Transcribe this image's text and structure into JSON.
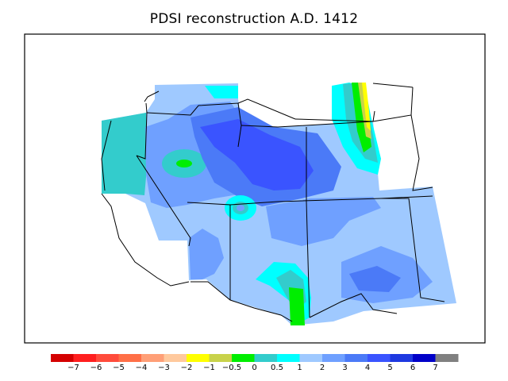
{
  "title": "PDSI reconstruction A.D. 1412",
  "legend": {
    "colors": [
      "#d40000",
      "#ff1f1f",
      "#ff4b3b",
      "#ff6f47",
      "#ff9f77",
      "#ffc99d",
      "#ffff00",
      "#c8d24a",
      "#00ee00",
      "#33cccc",
      "#00ffff",
      "#9fc9ff",
      "#6fa0ff",
      "#4b7af7",
      "#3a54ff",
      "#1e39e0",
      "#0000c8",
      "#808080"
    ],
    "ticks": [
      "−7",
      "−6",
      "−5",
      "−4",
      "−3",
      "−2",
      "−1",
      "−0.5",
      "0",
      "0.5",
      "1",
      "2",
      "3",
      "4",
      "5",
      "6",
      "7"
    ]
  },
  "regions": [
    "wa-teal-region",
    "id-blue-region",
    "mt-cyan-green-band",
    "ut-co-dark-blue-core",
    "nm-green-region",
    "tx-panhandle-blue-region",
    "sw-light-blue-region"
  ]
}
